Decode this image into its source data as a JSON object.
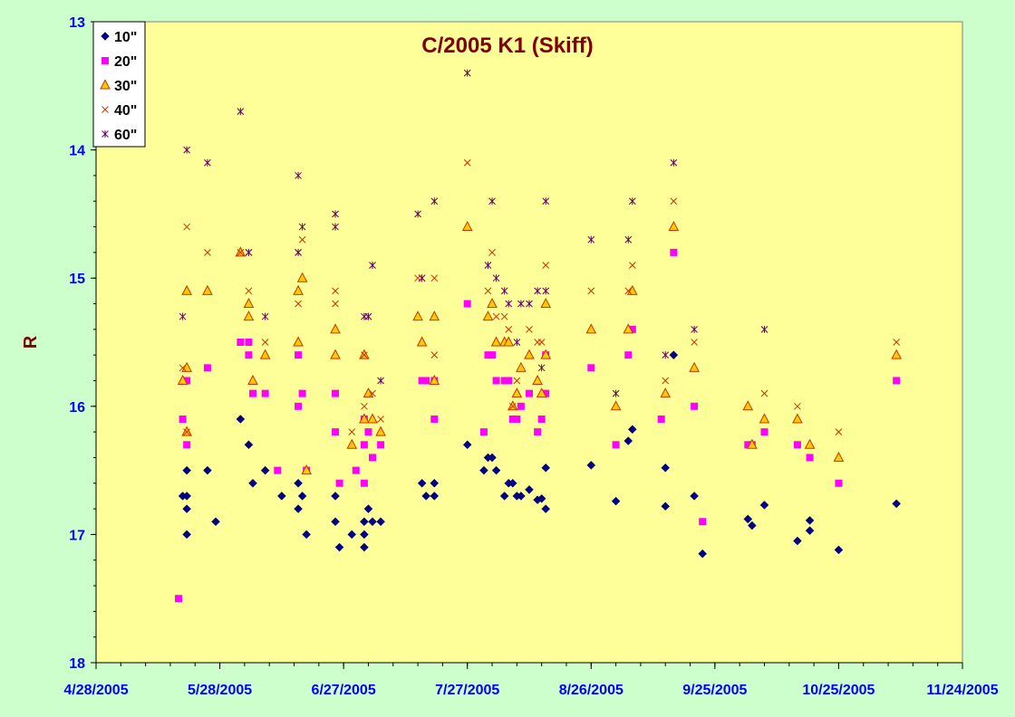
{
  "chart_data": {
    "type": "scatter",
    "title": "C/2005 K1 (Skiff)",
    "xlabel": "",
    "ylabel": "R",
    "x_axis_type": "date",
    "xlim": [
      "4/28/2005",
      "11/24/2005"
    ],
    "x_ticks": [
      "4/28/2005",
      "5/28/2005",
      "6/27/2005",
      "7/27/2005",
      "8/26/2005",
      "9/25/2005",
      "10/25/2005",
      "11/24/2005"
    ],
    "ylim": [
      13,
      18
    ],
    "y_reversed": true,
    "y_ticks": [
      "13",
      "14",
      "15",
      "16",
      "17",
      "18"
    ],
    "grid": false,
    "legend_position": "top-left",
    "plot_background": "#ffff99",
    "page_background": "#ccffcc",
    "series": [
      {
        "name": "10\"",
        "marker": "diamond",
        "color": "#000080",
        "points": [
          [
            "5/19/2005",
            16.7
          ],
          [
            "5/20/2005",
            16.7
          ],
          [
            "5/20/2005",
            16.5
          ],
          [
            "5/20/2005",
            16.8
          ],
          [
            "5/20/2005",
            17.0
          ],
          [
            "5/25/2005",
            16.5
          ],
          [
            "5/27/2005",
            16.9
          ],
          [
            "6/2/2005",
            16.1
          ],
          [
            "6/4/2005",
            16.3
          ],
          [
            "6/5/2005",
            16.6
          ],
          [
            "6/8/2005",
            16.5
          ],
          [
            "6/12/2005",
            16.7
          ],
          [
            "6/16/2005",
            16.8
          ],
          [
            "6/16/2005",
            16.6
          ],
          [
            "6/17/2005",
            16.7
          ],
          [
            "6/18/2005",
            17.0
          ],
          [
            "6/25/2005",
            16.7
          ],
          [
            "6/25/2005",
            16.9
          ],
          [
            "6/26/2005",
            17.1
          ],
          [
            "6/29/2005",
            17.0
          ],
          [
            "7/2/2005",
            16.9
          ],
          [
            "7/2/2005",
            17.0
          ],
          [
            "7/2/2005",
            17.1
          ],
          [
            "7/3/2005",
            16.8
          ],
          [
            "7/4/2005",
            16.9
          ],
          [
            "7/6/2005",
            16.9
          ],
          [
            "7/16/2005",
            16.6
          ],
          [
            "7/17/2005",
            16.7
          ],
          [
            "7/19/2005",
            16.7
          ],
          [
            "7/19/2005",
            16.6
          ],
          [
            "7/27/2005",
            16.3
          ],
          [
            "7/31/2005",
            16.5
          ],
          [
            "8/1/2005",
            16.4
          ],
          [
            "8/2/2005",
            16.4
          ],
          [
            "8/3/2005",
            16.5
          ],
          [
            "8/5/2005",
            16.7
          ],
          [
            "8/6/2005",
            16.6
          ],
          [
            "8/7/2005",
            16.6
          ],
          [
            "8/8/2005",
            16.7
          ],
          [
            "8/9/2005",
            16.7
          ],
          [
            "8/11/2005",
            16.65
          ],
          [
            "8/13/2005",
            16.73
          ],
          [
            "8/14/2005",
            16.72
          ],
          [
            "8/15/2005",
            16.8
          ],
          [
            "8/15/2005",
            16.48
          ],
          [
            "8/26/2005",
            16.46
          ],
          [
            "9/1/2005",
            16.74
          ],
          [
            "9/4/2005",
            16.27
          ],
          [
            "9/5/2005",
            16.18
          ],
          [
            "9/13/2005",
            16.48
          ],
          [
            "9/13/2005",
            16.78
          ],
          [
            "9/15/2005",
            15.6
          ],
          [
            "9/20/2005",
            16.7
          ],
          [
            "9/22/2005",
            17.15
          ],
          [
            "10/3/2005",
            16.88
          ],
          [
            "10/4/2005",
            16.93
          ],
          [
            "10/7/2005",
            16.77
          ],
          [
            "10/15/2005",
            17.05
          ],
          [
            "10/18/2005",
            16.97
          ],
          [
            "10/18/2005",
            16.89
          ],
          [
            "10/25/2005",
            17.12
          ],
          [
            "11/8/2005",
            16.76
          ]
        ]
      },
      {
        "name": "20\"",
        "marker": "square",
        "color": "#ff00ff",
        "points": [
          [
            "5/18/2005",
            17.5
          ],
          [
            "5/19/2005",
            16.1
          ],
          [
            "5/20/2005",
            16.3
          ],
          [
            "5/20/2005",
            15.8
          ],
          [
            "5/25/2005",
            15.7
          ],
          [
            "6/2/2005",
            15.5
          ],
          [
            "6/4/2005",
            15.5
          ],
          [
            "6/4/2005",
            15.6
          ],
          [
            "6/5/2005",
            15.9
          ],
          [
            "6/8/2005",
            15.9
          ],
          [
            "6/11/2005",
            16.5
          ],
          [
            "6/16/2005",
            15.6
          ],
          [
            "6/16/2005",
            16.0
          ],
          [
            "6/17/2005",
            15.9
          ],
          [
            "6/18/2005",
            16.5
          ],
          [
            "6/25/2005",
            15.9
          ],
          [
            "6/25/2005",
            16.2
          ],
          [
            "6/26/2005",
            16.6
          ],
          [
            "6/30/2005",
            16.5
          ],
          [
            "7/2/2005",
            16.3
          ],
          [
            "7/2/2005",
            16.6
          ],
          [
            "7/2/2005",
            16.1
          ],
          [
            "7/3/2005",
            16.2
          ],
          [
            "7/4/2005",
            16.4
          ],
          [
            "7/6/2005",
            16.3
          ],
          [
            "7/16/2005",
            15.8
          ],
          [
            "7/17/2005",
            15.8
          ],
          [
            "7/19/2005",
            15.8
          ],
          [
            "7/19/2005",
            16.1
          ],
          [
            "7/27/2005",
            15.2
          ],
          [
            "7/31/2005",
            16.2
          ],
          [
            "8/1/2005",
            15.6
          ],
          [
            "8/2/2005",
            15.6
          ],
          [
            "8/3/2005",
            15.8
          ],
          [
            "8/5/2005",
            15.8
          ],
          [
            "8/6/2005",
            15.8
          ],
          [
            "8/7/2005",
            16.1
          ],
          [
            "8/8/2005",
            16.1
          ],
          [
            "8/9/2005",
            16.0
          ],
          [
            "8/11/2005",
            15.9
          ],
          [
            "8/13/2005",
            16.2
          ],
          [
            "8/14/2005",
            16.1
          ],
          [
            "8/15/2005",
            15.9
          ],
          [
            "8/15/2005",
            15.6
          ],
          [
            "8/26/2005",
            15.7
          ],
          [
            "9/1/2005",
            16.3
          ],
          [
            "9/4/2005",
            15.6
          ],
          [
            "9/5/2005",
            15.4
          ],
          [
            "9/12/2005",
            16.1
          ],
          [
            "9/15/2005",
            14.8
          ],
          [
            "9/20/2005",
            16.0
          ],
          [
            "9/22/2005",
            16.9
          ],
          [
            "10/3/2005",
            16.3
          ],
          [
            "10/4/2005",
            16.3
          ],
          [
            "10/7/2005",
            16.2
          ],
          [
            "10/15/2005",
            16.3
          ],
          [
            "10/18/2005",
            16.4
          ],
          [
            "10/25/2005",
            16.6
          ],
          [
            "11/8/2005",
            15.8
          ]
        ]
      },
      {
        "name": "30\"",
        "marker": "triangle",
        "color": "#ff9900",
        "points": [
          [
            "5/19/2005",
            15.8
          ],
          [
            "5/20/2005",
            15.1
          ],
          [
            "5/20/2005",
            15.7
          ],
          [
            "5/20/2005",
            16.2
          ],
          [
            "5/25/2005",
            15.1
          ],
          [
            "6/2/2005",
            14.8
          ],
          [
            "6/4/2005",
            15.3
          ],
          [
            "6/4/2005",
            15.2
          ],
          [
            "6/5/2005",
            15.8
          ],
          [
            "6/8/2005",
            15.6
          ],
          [
            "6/16/2005",
            15.1
          ],
          [
            "6/16/2005",
            15.5
          ],
          [
            "6/17/2005",
            15.0
          ],
          [
            "6/18/2005",
            16.5
          ],
          [
            "6/25/2005",
            15.4
          ],
          [
            "6/25/2005",
            15.6
          ],
          [
            "6/29/2005",
            16.3
          ],
          [
            "7/2/2005",
            15.6
          ],
          [
            "7/2/2005",
            16.1
          ],
          [
            "7/3/2005",
            15.9
          ],
          [
            "7/4/2005",
            16.1
          ],
          [
            "7/6/2005",
            16.2
          ],
          [
            "7/15/2005",
            15.3
          ],
          [
            "7/16/2005",
            15.5
          ],
          [
            "7/19/2005",
            15.3
          ],
          [
            "7/19/2005",
            15.8
          ],
          [
            "7/27/2005",
            14.6
          ],
          [
            "8/1/2005",
            15.3
          ],
          [
            "8/2/2005",
            15.2
          ],
          [
            "8/3/2005",
            15.5
          ],
          [
            "8/5/2005",
            15.5
          ],
          [
            "8/6/2005",
            15.5
          ],
          [
            "8/7/2005",
            16.0
          ],
          [
            "8/8/2005",
            15.9
          ],
          [
            "8/9/2005",
            15.7
          ],
          [
            "8/11/2005",
            15.6
          ],
          [
            "8/13/2005",
            15.8
          ],
          [
            "8/14/2005",
            15.9
          ],
          [
            "8/15/2005",
            15.2
          ],
          [
            "8/15/2005",
            15.6
          ],
          [
            "8/26/2005",
            15.4
          ],
          [
            "9/1/2005",
            16.0
          ],
          [
            "9/4/2005",
            15.4
          ],
          [
            "9/5/2005",
            15.1
          ],
          [
            "9/13/2005",
            15.9
          ],
          [
            "9/15/2005",
            14.6
          ],
          [
            "9/20/2005",
            15.7
          ],
          [
            "10/3/2005",
            16.0
          ],
          [
            "10/4/2005",
            16.3
          ],
          [
            "10/7/2005",
            16.1
          ],
          [
            "10/15/2005",
            16.1
          ],
          [
            "10/18/2005",
            16.3
          ],
          [
            "10/25/2005",
            16.4
          ],
          [
            "11/8/2005",
            15.6
          ]
        ]
      },
      {
        "name": "40\"",
        "marker": "x",
        "color": "#cc3300",
        "points": [
          [
            "5/19/2005",
            15.7
          ],
          [
            "5/20/2005",
            14.6
          ],
          [
            "5/20/2005",
            16.2
          ],
          [
            "5/25/2005",
            14.8
          ],
          [
            "6/2/2005",
            14.8
          ],
          [
            "6/4/2005",
            15.1
          ],
          [
            "6/4/2005",
            14.8
          ],
          [
            "6/8/2005",
            15.5
          ],
          [
            "6/16/2005",
            15.2
          ],
          [
            "6/16/2005",
            14.8
          ],
          [
            "6/17/2005",
            14.7
          ],
          [
            "6/25/2005",
            15.1
          ],
          [
            "6/25/2005",
            15.2
          ],
          [
            "6/29/2005",
            16.2
          ],
          [
            "7/2/2005",
            15.6
          ],
          [
            "7/2/2005",
            16.0
          ],
          [
            "7/3/2005",
            15.3
          ],
          [
            "7/4/2005",
            15.9
          ],
          [
            "7/6/2005",
            16.1
          ],
          [
            "7/15/2005",
            15.0
          ],
          [
            "7/16/2005",
            15.0
          ],
          [
            "7/19/2005",
            15.0
          ],
          [
            "7/19/2005",
            15.6
          ],
          [
            "7/27/2005",
            14.1
          ],
          [
            "8/1/2005",
            15.1
          ],
          [
            "8/2/2005",
            14.8
          ],
          [
            "8/3/2005",
            15.3
          ],
          [
            "8/5/2005",
            15.3
          ],
          [
            "8/6/2005",
            15.4
          ],
          [
            "8/7/2005",
            16.0
          ],
          [
            "8/8/2005",
            15.8
          ],
          [
            "8/11/2005",
            15.4
          ],
          [
            "8/13/2005",
            15.5
          ],
          [
            "8/14/2005",
            15.5
          ],
          [
            "8/15/2005",
            14.9
          ],
          [
            "8/26/2005",
            15.1
          ],
          [
            "9/4/2005",
            15.1
          ],
          [
            "9/5/2005",
            14.9
          ],
          [
            "9/13/2005",
            15.8
          ],
          [
            "9/15/2005",
            14.4
          ],
          [
            "9/20/2005",
            15.5
          ],
          [
            "10/7/2005",
            15.9
          ],
          [
            "10/15/2005",
            16.0
          ],
          [
            "10/25/2005",
            16.2
          ],
          [
            "11/8/2005",
            15.5
          ]
        ]
      },
      {
        "name": "60\"",
        "marker": "asterisk",
        "color": "#660066",
        "points": [
          [
            "5/19/2005",
            15.3
          ],
          [
            "5/20/2005",
            14.0
          ],
          [
            "5/25/2005",
            14.1
          ],
          [
            "6/2/2005",
            13.7
          ],
          [
            "6/4/2005",
            14.8
          ],
          [
            "6/8/2005",
            15.3
          ],
          [
            "6/16/2005",
            14.2
          ],
          [
            "6/16/2005",
            14.8
          ],
          [
            "6/17/2005",
            14.6
          ],
          [
            "6/25/2005",
            14.5
          ],
          [
            "6/25/2005",
            14.6
          ],
          [
            "7/2/2005",
            15.3
          ],
          [
            "7/3/2005",
            15.3
          ],
          [
            "7/4/2005",
            14.9
          ],
          [
            "7/6/2005",
            15.8
          ],
          [
            "7/15/2005",
            14.5
          ],
          [
            "7/16/2005",
            15.0
          ],
          [
            "7/19/2005",
            14.4
          ],
          [
            "7/27/2005",
            13.4
          ],
          [
            "8/1/2005",
            14.9
          ],
          [
            "8/2/2005",
            14.4
          ],
          [
            "8/3/2005",
            15.0
          ],
          [
            "8/5/2005",
            15.1
          ],
          [
            "8/6/2005",
            15.2
          ],
          [
            "8/8/2005",
            15.5
          ],
          [
            "8/9/2005",
            15.2
          ],
          [
            "8/11/2005",
            15.2
          ],
          [
            "8/13/2005",
            15.1
          ],
          [
            "8/14/2005",
            15.7
          ],
          [
            "8/15/2005",
            14.4
          ],
          [
            "8/15/2005",
            15.1
          ],
          [
            "8/26/2005",
            14.7
          ],
          [
            "9/1/2005",
            15.9
          ],
          [
            "9/4/2005",
            14.7
          ],
          [
            "9/5/2005",
            14.4
          ],
          [
            "9/13/2005",
            15.6
          ],
          [
            "9/15/2005",
            14.1
          ],
          [
            "9/20/2005",
            15.4
          ],
          [
            "10/7/2005",
            15.4
          ]
        ]
      }
    ]
  }
}
